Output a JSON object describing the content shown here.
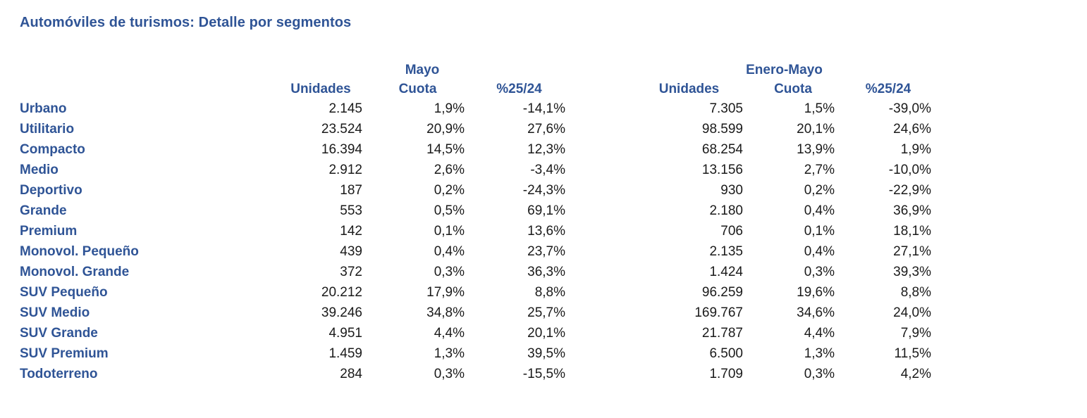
{
  "title": "Automóviles de turismos: Detalle por segmentos",
  "colors": {
    "accent_blue": "#2F5496",
    "value_text": "#1A1A1A",
    "background": "#FFFFFF"
  },
  "table": {
    "groups": [
      {
        "label": "Mayo"
      },
      {
        "label": "Enero-Mayo"
      }
    ],
    "sub_headers": [
      "Unidades",
      "Cuota",
      "%25/24",
      "Unidades",
      "Cuota",
      "%25/24"
    ],
    "rows": [
      {
        "segment": "Urbano",
        "values": [
          "2.145",
          "1,9%",
          "-14,1%",
          "7.305",
          "1,5%",
          "-39,0%"
        ]
      },
      {
        "segment": "Utilitario",
        "values": [
          "23.524",
          "20,9%",
          "27,6%",
          "98.599",
          "20,1%",
          "24,6%"
        ]
      },
      {
        "segment": "Compacto",
        "values": [
          "16.394",
          "14,5%",
          "12,3%",
          "68.254",
          "13,9%",
          "1,9%"
        ]
      },
      {
        "segment": "Medio",
        "values": [
          "2.912",
          "2,6%",
          "-3,4%",
          "13.156",
          "2,7%",
          "-10,0%"
        ]
      },
      {
        "segment": "Deportivo",
        "values": [
          "187",
          "0,2%",
          "-24,3%",
          "930",
          "0,2%",
          "-22,9%"
        ]
      },
      {
        "segment": "Grande",
        "values": [
          "553",
          "0,5%",
          "69,1%",
          "2.180",
          "0,4%",
          "36,9%"
        ]
      },
      {
        "segment": "Premium",
        "values": [
          "142",
          "0,1%",
          "13,6%",
          "706",
          "0,1%",
          "18,1%"
        ]
      },
      {
        "segment": "Monovol. Pequeño",
        "values": [
          "439",
          "0,4%",
          "23,7%",
          "2.135",
          "0,4%",
          "27,1%"
        ]
      },
      {
        "segment": "Monovol. Grande",
        "values": [
          "372",
          "0,3%",
          "36,3%",
          "1.424",
          "0,3%",
          "39,3%"
        ]
      },
      {
        "segment": "SUV Pequeño",
        "values": [
          "20.212",
          "17,9%",
          "8,8%",
          "96.259",
          "19,6%",
          "8,8%"
        ]
      },
      {
        "segment": "SUV Medio",
        "values": [
          "39.246",
          "34,8%",
          "25,7%",
          "169.767",
          "34,6%",
          "24,0%"
        ]
      },
      {
        "segment": "SUV Grande",
        "values": [
          "4.951",
          "4,4%",
          "20,1%",
          "21.787",
          "4,4%",
          "7,9%"
        ]
      },
      {
        "segment": "SUV Premium",
        "values": [
          "1.459",
          "1,3%",
          "39,5%",
          "6.500",
          "1,3%",
          "11,5%"
        ]
      },
      {
        "segment": "Todoterreno",
        "values": [
          "284",
          "0,3%",
          "-15,5%",
          "1.709",
          "0,3%",
          "4,2%"
        ]
      }
    ]
  }
}
